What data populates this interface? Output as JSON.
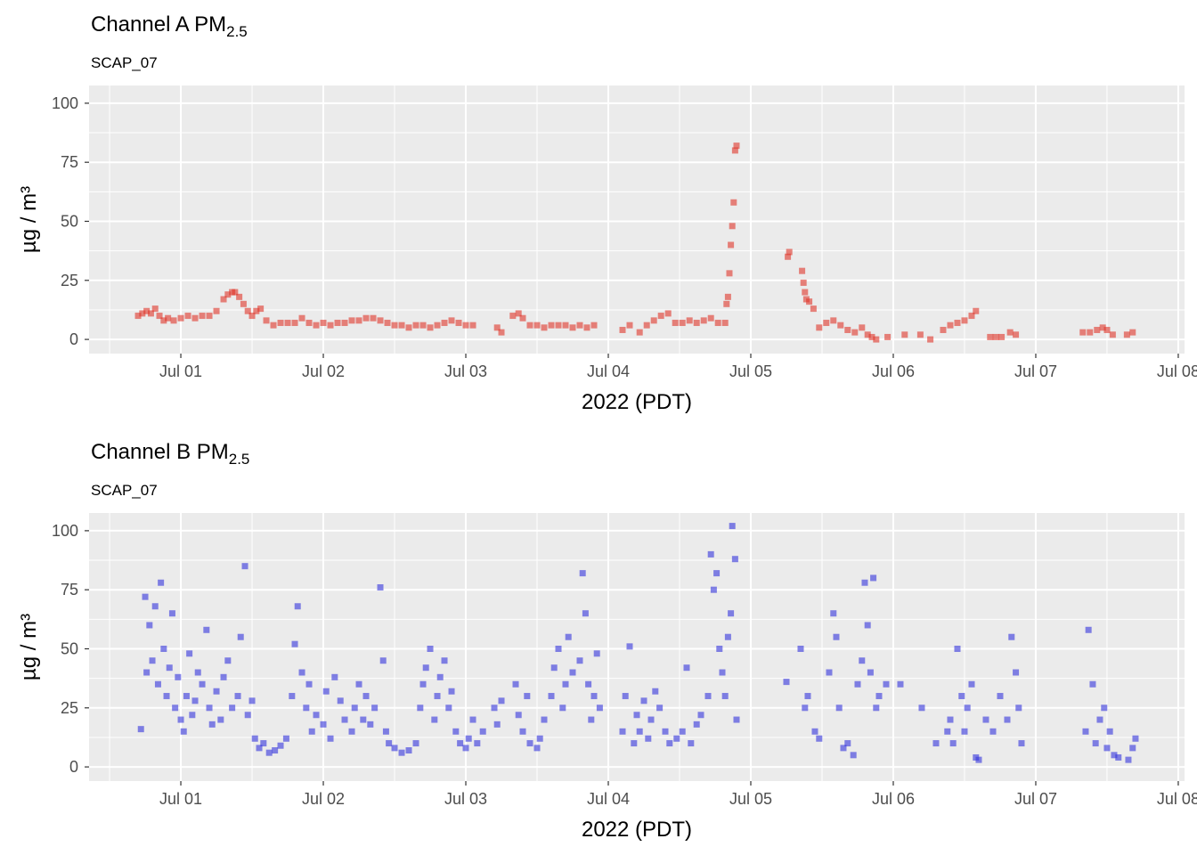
{
  "chart_data": [
    {
      "type": "scatter",
      "title": "Channel A PM",
      "title_subscript": "2.5",
      "subtitle": "SCAP_07",
      "xlabel": "2022 (PDT)",
      "ylabel": "µg / m³",
      "color": "#e0362a",
      "grid": true,
      "minor_grid": true,
      "xlim": [
        0.356,
        8.044
      ],
      "ylim": [
        -6,
        107.5
      ],
      "xticks": [
        {
          "value": 1,
          "label": "Jul 01"
        },
        {
          "value": 2,
          "label": "Jul 02"
        },
        {
          "value": 3,
          "label": "Jul 03"
        },
        {
          "value": 4,
          "label": "Jul 04"
        },
        {
          "value": 5,
          "label": "Jul 05"
        },
        {
          "value": 6,
          "label": "Jul 06"
        },
        {
          "value": 7,
          "label": "Jul 07"
        },
        {
          "value": 8,
          "label": "Jul 08"
        }
      ],
      "yticks": [
        0,
        25,
        50,
        75,
        100
      ],
      "x": [
        0.7,
        0.73,
        0.76,
        0.79,
        0.82,
        0.85,
        0.88,
        0.91,
        0.95,
        1.0,
        1.05,
        1.1,
        1.15,
        1.2,
        1.25,
        1.3,
        1.33,
        1.36,
        1.38,
        1.41,
        1.44,
        1.47,
        1.5,
        1.53,
        1.56,
        1.6,
        1.65,
        1.7,
        1.75,
        1.8,
        1.85,
        1.9,
        1.95,
        2.0,
        2.05,
        2.1,
        2.15,
        2.2,
        2.25,
        2.3,
        2.35,
        2.4,
        2.45,
        2.5,
        2.55,
        2.6,
        2.65,
        2.7,
        2.75,
        2.8,
        2.85,
        2.9,
        2.95,
        3.0,
        3.05,
        3.22,
        3.25,
        3.33,
        3.37,
        3.4,
        3.45,
        3.5,
        3.55,
        3.6,
        3.65,
        3.7,
        3.75,
        3.8,
        3.85,
        3.9,
        4.1,
        4.15,
        4.22,
        4.27,
        4.32,
        4.37,
        4.42,
        4.47,
        4.52,
        4.57,
        4.62,
        4.67,
        4.72,
        4.77,
        4.82,
        4.83,
        4.84,
        4.85,
        4.86,
        4.87,
        4.88,
        4.89,
        4.9,
        5.26,
        5.27,
        5.36,
        5.37,
        5.38,
        5.39,
        5.41,
        5.44,
        5.48,
        5.53,
        5.58,
        5.63,
        5.68,
        5.73,
        5.78,
        5.82,
        5.85,
        5.88,
        5.96,
        6.08,
        6.19,
        6.26,
        6.35,
        6.4,
        6.45,
        6.5,
        6.55,
        6.58,
        6.68,
        6.72,
        6.76,
        6.82,
        6.86,
        7.33,
        7.38,
        7.43,
        7.47,
        7.5,
        7.54,
        7.64,
        7.68
      ],
      "values": [
        10,
        11,
        12,
        11,
        13,
        10,
        8,
        9,
        8,
        9,
        10,
        9,
        10,
        10,
        12,
        17,
        19,
        20,
        20,
        18,
        15,
        12,
        10,
        12,
        13,
        8,
        6,
        7,
        7,
        7,
        9,
        7,
        6,
        7,
        6,
        7,
        7,
        8,
        8,
        9,
        9,
        8,
        7,
        6,
        6,
        5,
        6,
        6,
        5,
        6,
        7,
        8,
        7,
        6,
        6,
        5,
        3,
        10,
        11,
        9,
        6,
        6,
        5,
        6,
        6,
        6,
        5,
        6,
        5,
        6,
        4,
        6,
        3,
        6,
        8,
        10,
        11,
        7,
        7,
        8,
        7,
        8,
        9,
        7,
        7,
        15,
        18,
        28,
        40,
        48,
        58,
        80,
        82,
        35,
        37,
        29,
        24,
        20,
        17,
        16,
        13,
        5,
        7,
        8,
        6,
        4,
        3,
        5,
        2,
        1,
        0,
        1,
        2,
        2,
        0,
        4,
        6,
        7,
        8,
        10,
        12,
        1,
        1,
        1,
        3,
        2,
        3,
        3,
        4,
        5,
        4,
        2,
        2,
        3
      ]
    },
    {
      "type": "scatter",
      "title": "Channel B PM",
      "title_subscript": "2.5",
      "subtitle": "SCAP_07",
      "xlabel": "2022 (PDT)",
      "ylabel": "µg / m³",
      "color": "#3434dc",
      "grid": true,
      "minor_grid": true,
      "xlim": [
        0.356,
        8.044
      ],
      "ylim": [
        -6,
        107.5
      ],
      "xticks": [
        {
          "value": 1,
          "label": "Jul 01"
        },
        {
          "value": 2,
          "label": "Jul 02"
        },
        {
          "value": 3,
          "label": "Jul 03"
        },
        {
          "value": 4,
          "label": "Jul 04"
        },
        {
          "value": 5,
          "label": "Jul 05"
        },
        {
          "value": 6,
          "label": "Jul 06"
        },
        {
          "value": 7,
          "label": "Jul 07"
        },
        {
          "value": 8,
          "label": "Jul 08"
        }
      ],
      "yticks": [
        0,
        25,
        50,
        75,
        100
      ],
      "x": [
        0.72,
        0.75,
        0.76,
        0.78,
        0.8,
        0.82,
        0.84,
        0.86,
        0.88,
        0.9,
        0.92,
        0.94,
        0.96,
        0.98,
        1.0,
        1.02,
        1.04,
        1.06,
        1.08,
        1.1,
        1.12,
        1.15,
        1.18,
        1.2,
        1.22,
        1.25,
        1.28,
        1.3,
        1.33,
        1.36,
        1.4,
        1.42,
        1.45,
        1.47,
        1.5,
        1.52,
        1.55,
        1.58,
        1.62,
        1.66,
        1.7,
        1.74,
        1.78,
        1.8,
        1.82,
        1.85,
        1.88,
        1.9,
        1.92,
        1.95,
        2.0,
        2.02,
        2.05,
        2.08,
        2.12,
        2.15,
        2.2,
        2.22,
        2.25,
        2.28,
        2.3,
        2.33,
        2.36,
        2.4,
        2.42,
        2.44,
        2.46,
        2.5,
        2.55,
        2.6,
        2.65,
        2.68,
        2.7,
        2.72,
        2.75,
        2.78,
        2.8,
        2.82,
        2.85,
        2.88,
        2.9,
        2.93,
        2.96,
        3.0,
        3.02,
        3.05,
        3.08,
        3.12,
        3.2,
        3.22,
        3.25,
        3.35,
        3.37,
        3.4,
        3.43,
        3.45,
        3.5,
        3.52,
        3.55,
        3.6,
        3.62,
        3.65,
        3.68,
        3.7,
        3.72,
        3.75,
        3.8,
        3.82,
        3.84,
        3.86,
        3.88,
        3.9,
        3.92,
        3.94,
        4.1,
        4.12,
        4.15,
        4.18,
        4.2,
        4.22,
        4.25,
        4.28,
        4.3,
        4.33,
        4.36,
        4.4,
        4.43,
        4.48,
        4.52,
        4.55,
        4.58,
        4.62,
        4.65,
        4.7,
        4.72,
        4.74,
        4.76,
        4.78,
        4.8,
        4.82,
        4.84,
        4.86,
        4.87,
        4.89,
        4.9,
        5.25,
        5.35,
        5.38,
        5.4,
        5.45,
        5.48,
        5.55,
        5.58,
        5.6,
        5.62,
        5.65,
        5.68,
        5.72,
        5.75,
        5.78,
        5.8,
        5.82,
        5.84,
        5.86,
        5.88,
        5.9,
        5.95,
        6.05,
        6.2,
        6.3,
        6.38,
        6.4,
        6.42,
        6.45,
        6.48,
        6.5,
        6.52,
        6.55,
        6.58,
        6.6,
        6.65,
        6.7,
        6.75,
        6.8,
        6.83,
        6.86,
        6.88,
        6.9,
        7.35,
        7.37,
        7.4,
        7.42,
        7.45,
        7.48,
        7.5,
        7.52,
        7.55,
        7.58,
        7.65,
        7.68,
        7.7
      ],
      "values": [
        16,
        72,
        40,
        60,
        45,
        68,
        35,
        78,
        50,
        30,
        42,
        65,
        25,
        38,
        20,
        15,
        30,
        48,
        22,
        28,
        40,
        35,
        58,
        25,
        18,
        32,
        20,
        38,
        45,
        25,
        30,
        55,
        85,
        22,
        28,
        12,
        8,
        10,
        6,
        7,
        9,
        12,
        30,
        52,
        68,
        40,
        25,
        35,
        15,
        22,
        18,
        32,
        12,
        38,
        28,
        20,
        15,
        25,
        35,
        20,
        30,
        18,
        25,
        76,
        45,
        15,
        10,
        8,
        6,
        7,
        10,
        25,
        35,
        42,
        50,
        20,
        30,
        38,
        45,
        25,
        32,
        15,
        10,
        8,
        12,
        20,
        10,
        15,
        25,
        18,
        28,
        35,
        22,
        15,
        30,
        10,
        8,
        12,
        20,
        30,
        42,
        50,
        25,
        35,
        55,
        40,
        45,
        82,
        65,
        35,
        20,
        30,
        48,
        25,
        15,
        30,
        51,
        10,
        22,
        15,
        28,
        12,
        20,
        32,
        25,
        15,
        10,
        12,
        15,
        42,
        10,
        18,
        22,
        30,
        90,
        75,
        82,
        50,
        40,
        30,
        55,
        65,
        102,
        88,
        20,
        36,
        50,
        25,
        30,
        15,
        12,
        40,
        65,
        55,
        25,
        8,
        10,
        5,
        35,
        45,
        78,
        60,
        40,
        80,
        25,
        30,
        35,
        35,
        25,
        10,
        15,
        20,
        10,
        50,
        30,
        15,
        25,
        35,
        4,
        3,
        20,
        15,
        30,
        20,
        55,
        40,
        25,
        10,
        15,
        58,
        35,
        10,
        20,
        25,
        8,
        15,
        5,
        4,
        3,
        8,
        12
      ]
    }
  ]
}
